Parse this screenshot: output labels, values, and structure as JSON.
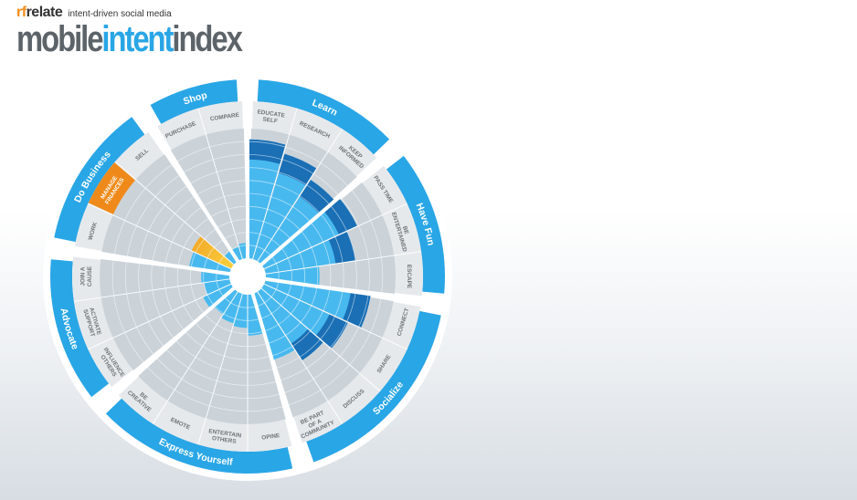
{
  "header": {
    "brand_prefix": "rf",
    "brand_suffix": "relate",
    "tagline": "intent-driven social media",
    "title_part1": "mobile",
    "title_part2": "intent",
    "title_part3": "index"
  },
  "colors": {
    "ring": "#29a6e6",
    "bar_dark": "#1a6fb5",
    "bar_light": "#48b9ef",
    "highlight": "#ef8a1a",
    "highlight_center": "#f9d23c",
    "inner_bg": "#cbd3d9",
    "band_bg": "#e6e9ec",
    "wedge_grey": "#a9b3bb"
  },
  "chart_data": {
    "type": "radial-bar",
    "scale": [
      0,
      10
    ],
    "categories": [
      {
        "name": "Learn",
        "subs": [
          {
            "label": "EDUCATE SELF",
            "value": 9.3
          },
          {
            "label": "RESEARCH",
            "value": 8.6
          },
          {
            "label": "KEEP INFORMED",
            "value": 7.6
          }
        ]
      },
      {
        "name": "Have Fun",
        "subs": [
          {
            "label": "PASS TIME",
            "value": 8.0
          },
          {
            "label": "BE ENTERTAINED",
            "value": 7.1
          },
          {
            "label": "ESCAPE",
            "value": 4.2
          }
        ]
      },
      {
        "name": "Socialize",
        "subs": [
          {
            "label": "CONNECT",
            "value": 8.3
          },
          {
            "label": "SHARE",
            "value": 7.2
          },
          {
            "label": "DISCUSS",
            "value": 6.4
          },
          {
            "label": "BE PART OF A COMMUNITY",
            "value": 5.4
          }
        ]
      },
      {
        "name": "Express Yourself",
        "subs": [
          {
            "label": "OPINE",
            "value": 3.2
          },
          {
            "label": "ENTERTAIN OTHERS",
            "value": 2.6
          },
          {
            "label": "EMOTE",
            "value": 2.4
          },
          {
            "label": "BE CREATIVE",
            "value": 2.1
          }
        ]
      },
      {
        "name": "Advocate",
        "subs": [
          {
            "label": "INFLUENCE OTHERS",
            "value": 2.4
          },
          {
            "label": "ACTIVATE SUPPORT",
            "value": 2.0
          },
          {
            "label": "JOIN A CAUSE",
            "value": 2.2
          }
        ]
      },
      {
        "name": "Do Business",
        "subs": [
          {
            "label": "WORK",
            "value": 3.2
          },
          {
            "label": "MANAGE FINANCES",
            "value": 3.4,
            "highlight": true
          },
          {
            "label": "SELL",
            "value": 1.0
          }
        ]
      },
      {
        "name": "Shop",
        "subs": [
          {
            "label": "PURCHASE",
            "value": 1.0
          },
          {
            "label": "COMPARE",
            "value": 1.2
          }
        ]
      }
    ]
  }
}
